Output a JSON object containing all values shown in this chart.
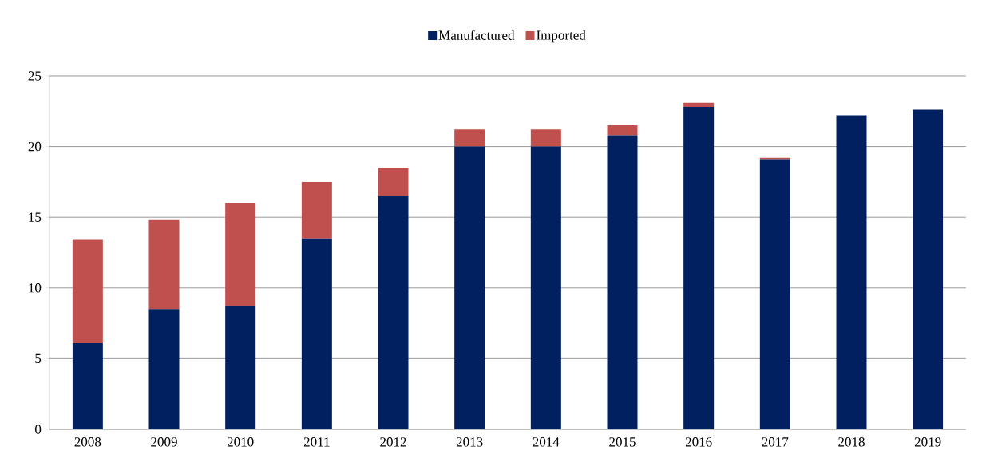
{
  "chart_data": {
    "type": "bar",
    "stacked": true,
    "categories": [
      "2008",
      "2009",
      "2010",
      "2011",
      "2012",
      "2013",
      "2014",
      "2015",
      "2016",
      "2017",
      "2018",
      "2019"
    ],
    "series": [
      {
        "name": "Manufactured",
        "color": "#002060",
        "values": [
          6.1,
          8.5,
          8.7,
          13.5,
          16.5,
          20.0,
          20.0,
          20.8,
          22.8,
          19.1,
          22.2,
          22.6
        ]
      },
      {
        "name": "Imported",
        "color": "#c0504d",
        "values": [
          7.3,
          6.3,
          7.3,
          4.0,
          2.0,
          1.2,
          1.2,
          0.7,
          0.3,
          0.1,
          0,
          0
        ]
      }
    ],
    "ylim": [
      0,
      25
    ],
    "yticks": [
      0,
      5,
      10,
      15,
      20,
      25
    ],
    "grid": "y",
    "legend": "top"
  }
}
